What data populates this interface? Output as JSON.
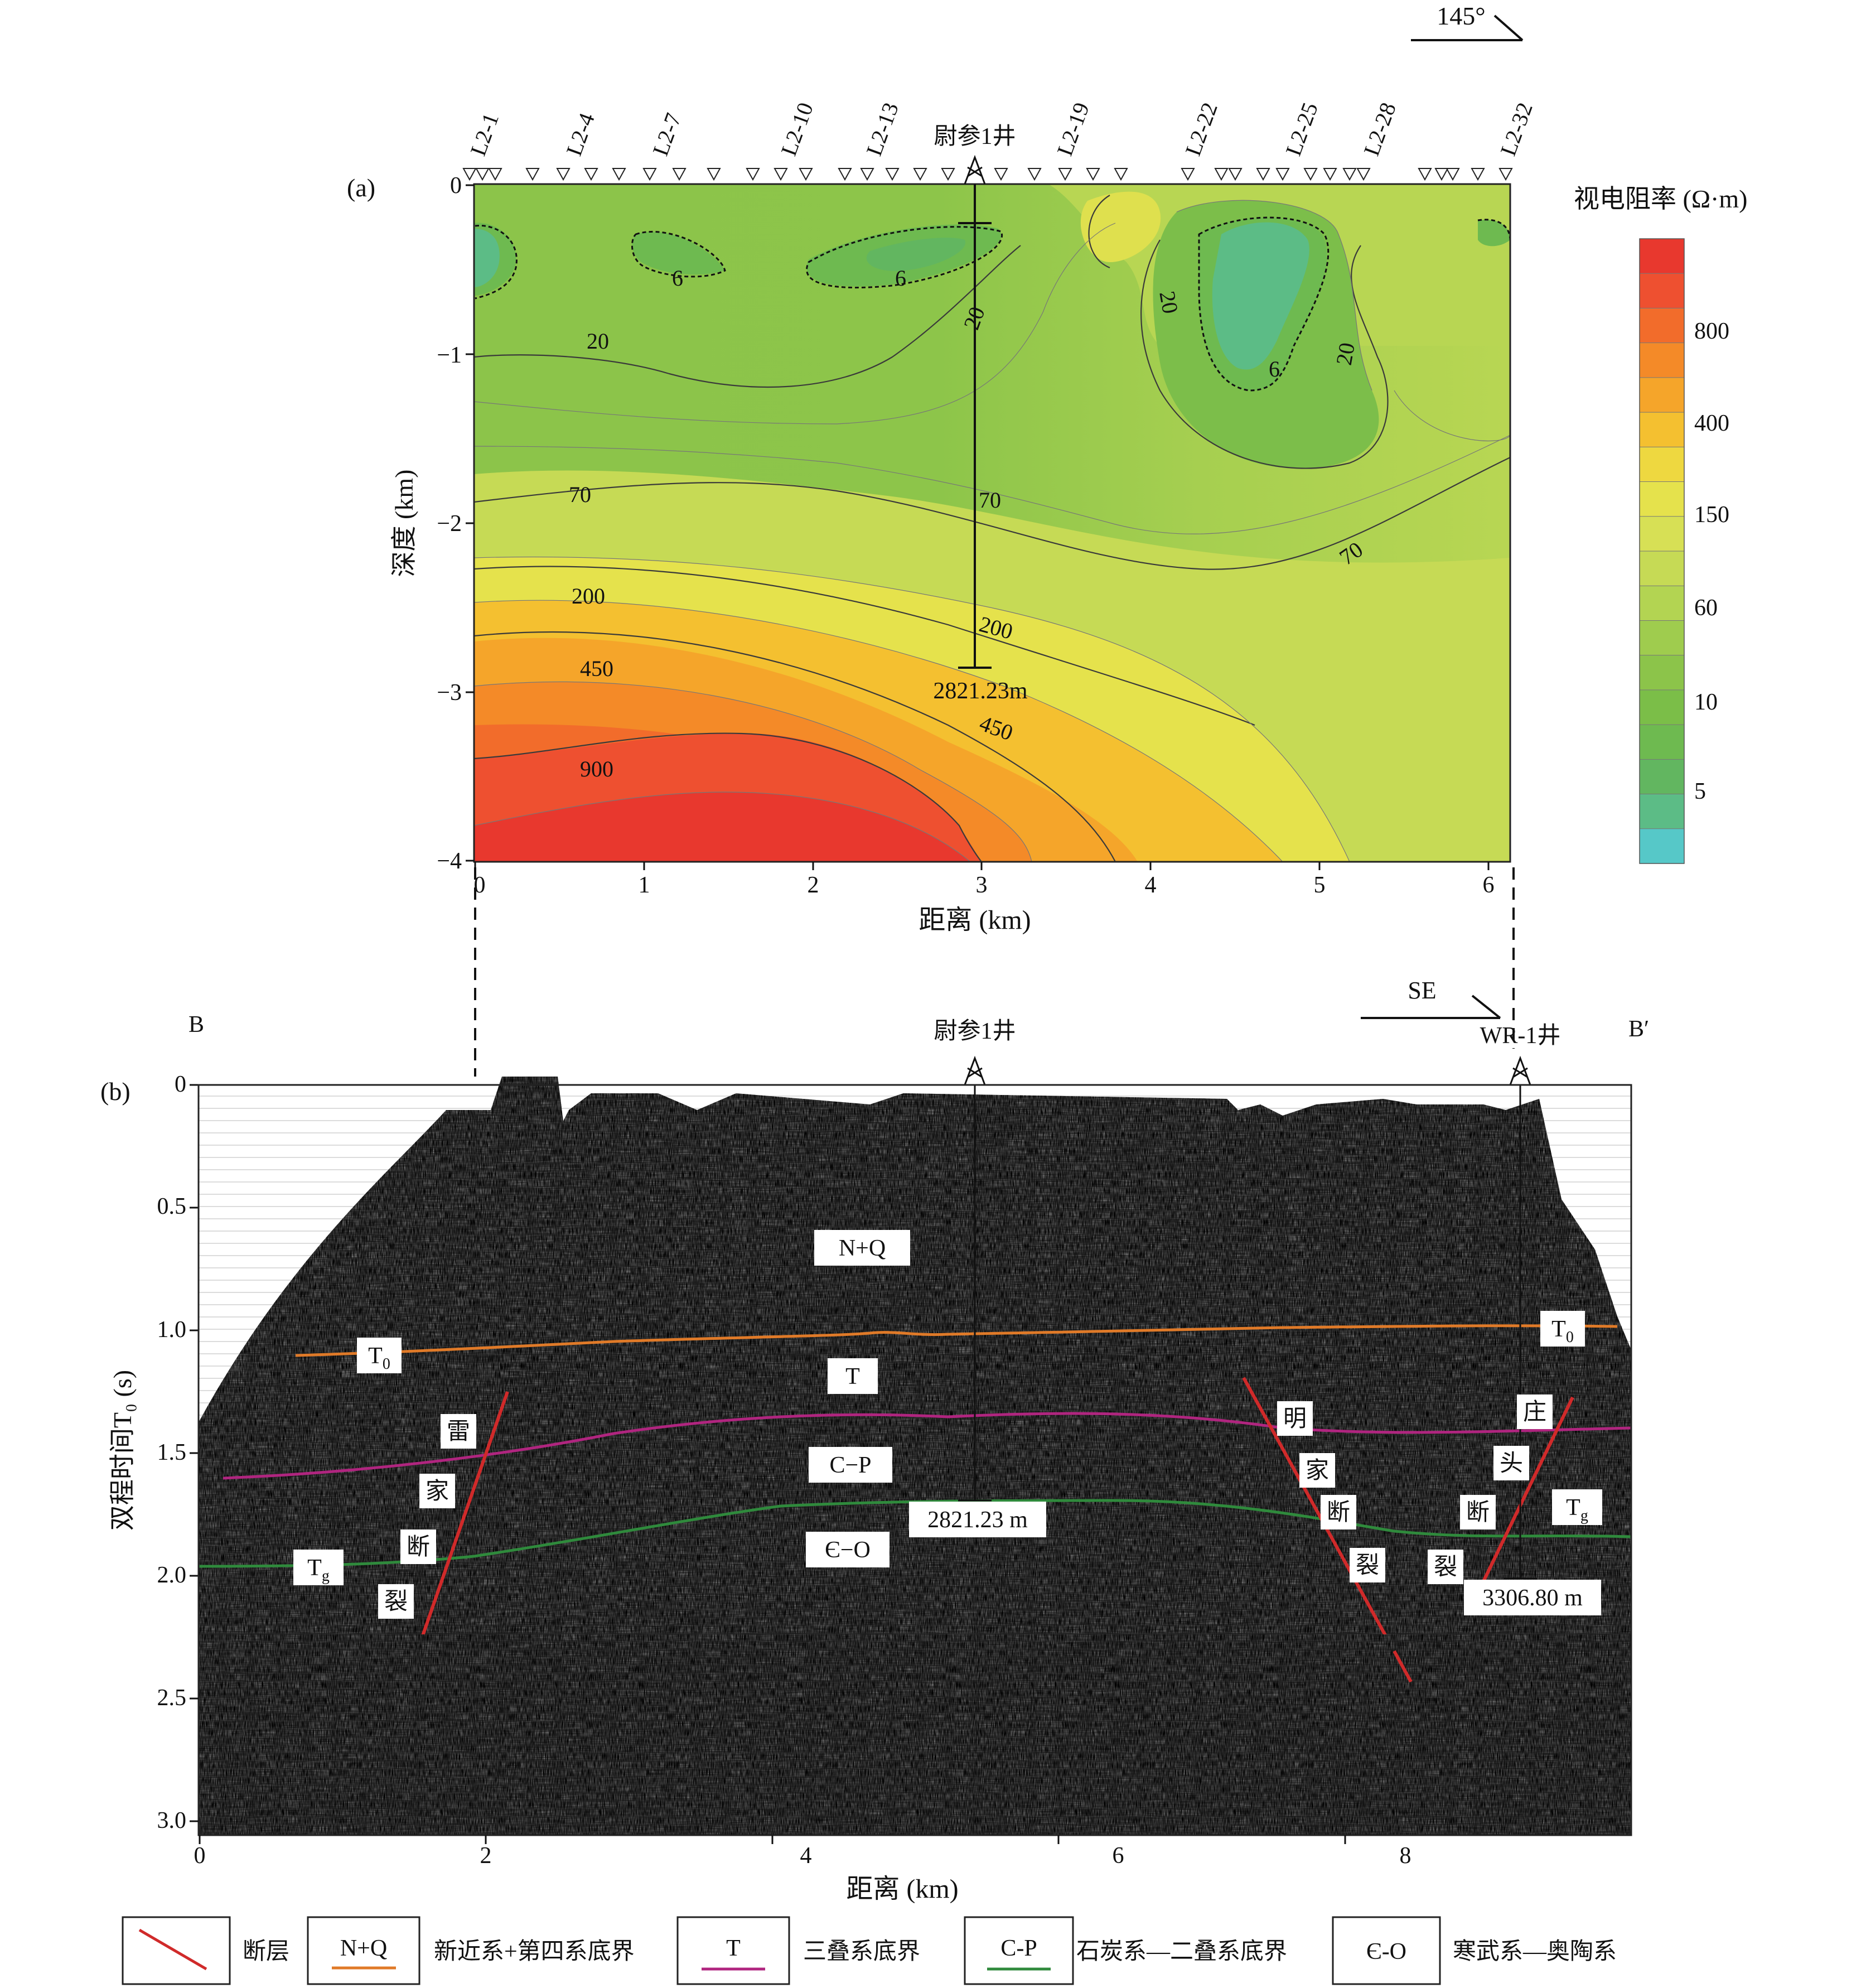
{
  "panel_a": {
    "label": "(a)",
    "direction": "145°",
    "well_name": "尉参1井",
    "well_depth": "2821.23m",
    "stations": [
      "L2-1",
      "L2-4",
      "L2-7",
      "L2-10",
      "L2-13",
      "L2-19",
      "L2-22",
      "L2-25",
      "L2-28",
      "L2-32"
    ],
    "ylabel": "深度 (km)",
    "xlabel": "距离 (km)",
    "xticks": [
      "0",
      "1",
      "2",
      "3",
      "4",
      "5",
      "6"
    ],
    "yticks": [
      "0",
      "−1",
      "−2",
      "−3",
      "−4"
    ],
    "contour_labels": [
      "6",
      "6",
      "6",
      "20",
      "20",
      "20",
      "20",
      "70",
      "70",
      "70",
      "200",
      "200",
      "450",
      "450",
      "900"
    ],
    "colorbar": {
      "title": "视电阻率 (Ω·m)",
      "ticks": [
        "800",
        "400",
        "150",
        "60",
        "10",
        "5"
      ],
      "colors": [
        "#e8382e",
        "#ee5030",
        "#f26c2b",
        "#f48a28",
        "#f5a52a",
        "#f4c030",
        "#eed840",
        "#e5e24c",
        "#d7e055",
        "#c6da55",
        "#b3d452",
        "#9fcc4e",
        "#8cc44a",
        "#7bbe48",
        "#6eba50",
        "#62b660",
        "#5cbc86",
        "#56c8c8"
      ]
    }
  },
  "panel_b": {
    "label": "(b)",
    "left_end": "B",
    "right_end": "B′",
    "direction": "SE",
    "wells": [
      "尉参1井",
      "WR-1井"
    ],
    "well_depths": [
      "2821.23 m",
      "3306.80 m"
    ],
    "ylabel": "双程时间T₀ (s)",
    "xlabel": "距离 (km)",
    "xticks": [
      "0",
      "2",
      "4",
      "6",
      "8"
    ],
    "yticks": [
      "0",
      "0.5",
      "1.0",
      "1.5",
      "2.0",
      "2.5",
      "3.0"
    ],
    "layer_labels": [
      "N+Q",
      "T",
      "C−P",
      "Є−O"
    ],
    "horizon_labels": [
      "T₀",
      "T₀",
      "T_g",
      "T_g"
    ],
    "faults": [
      {
        "name": "雷家断裂",
        "chars": [
          "雷",
          "家",
          "断",
          "裂"
        ]
      },
      {
        "name": "明家断裂",
        "chars": [
          "明",
          "家",
          "断",
          "裂"
        ]
      },
      {
        "name": "庄头断裂",
        "chars": [
          "庄",
          "头",
          "断",
          "裂"
        ]
      }
    ]
  },
  "legend": {
    "items": [
      {
        "symbol": "",
        "text": "断层",
        "color": "#d02a2a"
      },
      {
        "symbol": "N+Q",
        "text": "新近系+第四系底界",
        "color": "#e07a28"
      },
      {
        "symbol": "T",
        "text": "三叠系底界",
        "color": "#b0257f"
      },
      {
        "symbol": "C-P",
        "text": "石炭系—二叠系底界",
        "color": "#2f8a3c"
      },
      {
        "symbol": "Є-O",
        "text": "寒武系—奥陶系",
        "color": ""
      }
    ]
  }
}
